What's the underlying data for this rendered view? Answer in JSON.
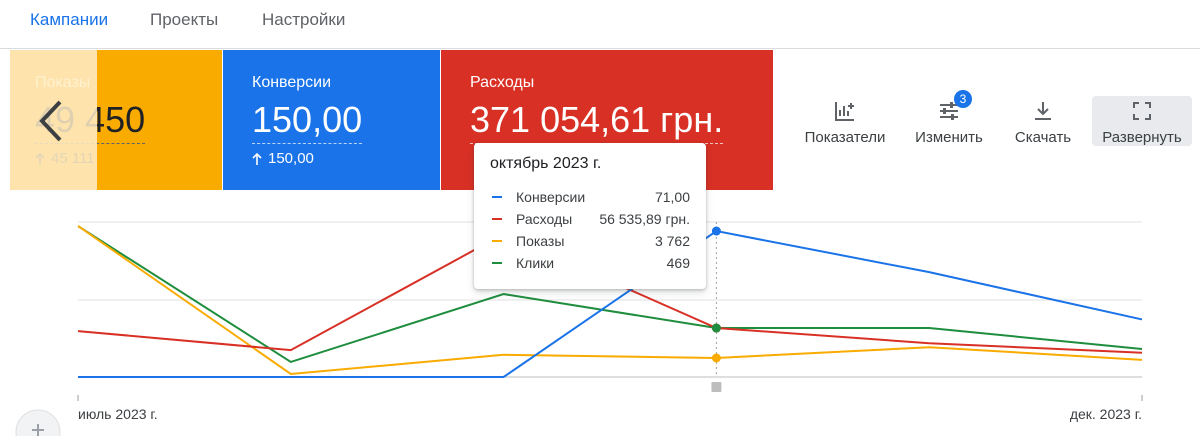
{
  "tabs": [
    {
      "label": "Кампании",
      "active": true
    },
    {
      "label": "Проекты",
      "active": false
    },
    {
      "label": "Настройки",
      "active": false
    }
  ],
  "cards": [
    {
      "label": "Показы",
      "value": "49 450",
      "delta": "45 111",
      "color": "#f9ab00"
    },
    {
      "label": "Конверсии",
      "value": "150,00",
      "delta": "150,00",
      "color": "#1a73e8"
    },
    {
      "label": "Расходы",
      "value": "371 054,61 грн.",
      "color": "#d93025"
    }
  ],
  "toolbar": [
    {
      "label": "Показатели"
    },
    {
      "label": "Изменить",
      "badge": 3
    },
    {
      "label": "Скачать"
    },
    {
      "label": "Развернуть"
    }
  ],
  "chart_data": {
    "type": "line",
    "categories": [
      "июль 2023 г.",
      null,
      null,
      null,
      null,
      "дек. 2023 г."
    ],
    "tooltip_title": "октябрь 2023 г.",
    "series": [
      {
        "name": "Конверсии",
        "color": "#1a73e8",
        "ylim": [
          0,
          75.4
        ],
        "values": [
          0,
          0,
          0,
          71,
          51,
          28
        ],
        "value_labels": [
          null,
          null,
          null,
          "71,00",
          null,
          null
        ]
      },
      {
        "name": "Расходы",
        "color": "#d93025",
        "ylim": [
          0,
          178900
        ],
        "values": [
          53000,
          31000,
          165000,
          56535.89,
          39000,
          28000
        ],
        "value_labels": [
          null,
          null,
          null,
          "56 535,89 грн.",
          null,
          null
        ]
      },
      {
        "name": "Показы",
        "color": "#f9ab00",
        "ylim": [
          0,
          30690
        ],
        "values": [
          29900,
          600,
          4400,
          3762,
          5900,
          3400
        ],
        "value_labels": [
          null,
          null,
          null,
          "3 762",
          null,
          null
        ]
      },
      {
        "name": "Клики",
        "color": "#1e8e3e",
        "ylim": [
          0,
          1484
        ],
        "values": [
          1445,
          144,
          794,
          469,
          469,
          268
        ],
        "value_labels": [
          null,
          null,
          null,
          "469",
          null,
          null
        ]
      }
    ]
  }
}
